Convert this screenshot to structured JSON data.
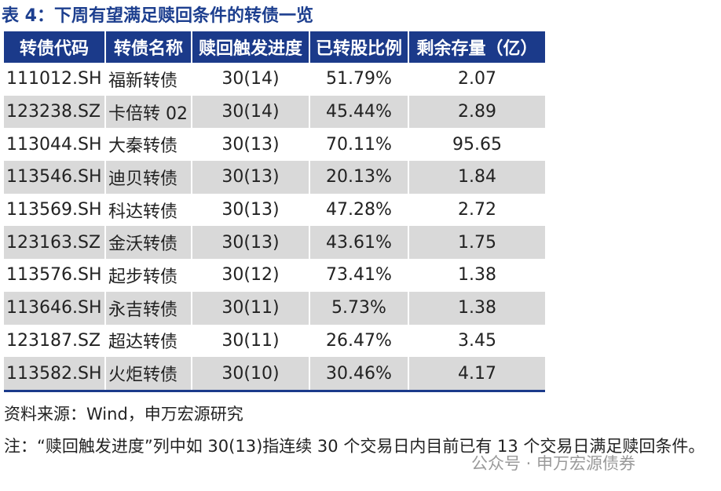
{
  "title": "表 4：下周有望满足赎回条件的转债一览",
  "table": {
    "header": [
      "转债代码",
      "转债名称",
      "赎回触发进度",
      "已转股比例",
      "剩余存量（亿）"
    ],
    "rows": [
      [
        "111012.SH",
        "福新转债",
        "30(14)",
        "51.79%",
        "2.07"
      ],
      [
        "123238.SZ",
        "卡倍转 02",
        "30(14)",
        "45.44%",
        "2.89"
      ],
      [
        "113044.SH",
        "大秦转债",
        "30(13)",
        "70.11%",
        "95.65"
      ],
      [
        "113546.SH",
        "迪贝转债",
        "30(13)",
        "20.13%",
        "1.84"
      ],
      [
        "113569.SH",
        "科达转债",
        "30(13)",
        "47.28%",
        "2.72"
      ],
      [
        "123163.SZ",
        "金沃转债",
        "30(13)",
        "43.61%",
        "1.75"
      ],
      [
        "113576.SH",
        "起步转债",
        "30(12)",
        "73.41%",
        "1.38"
      ],
      [
        "113646.SH",
        "永吉转债",
        "30(11)",
        "5.73%",
        "1.38"
      ],
      [
        "123187.SZ",
        "超达转债",
        "30(11)",
        "26.47%",
        "3.45"
      ],
      [
        "113582.SH",
        "火炬转债",
        "30(10)",
        "30.46%",
        "4.17"
      ]
    ]
  },
  "source": "资料来源：Wind，申万宏源研究",
  "note": "注：“赎回触发进度”列中如 30(13)指连续 30 个交易日内目前已有 13 个交易日满足赎回条件。",
  "watermark": "公众号 · 申万宏源债券"
}
